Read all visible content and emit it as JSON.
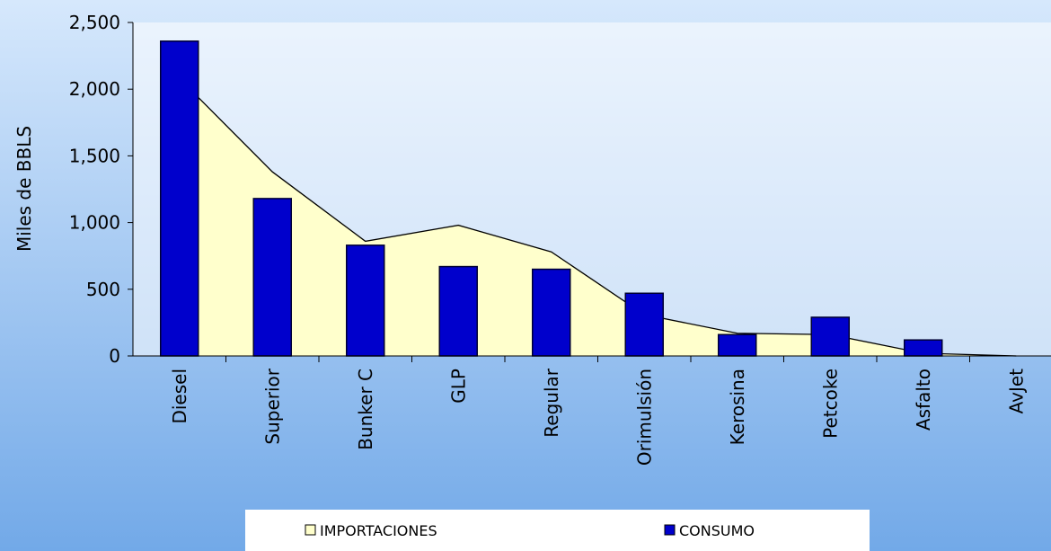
{
  "chart_data": {
    "type": "bar_area",
    "ylabel": "Miles de BBLS",
    "categories": [
      "Diesel",
      "Superior",
      "Bunker C",
      "GLP",
      "Regular",
      "Orimulsión",
      "Kerosina",
      "Petcoke",
      "Asfalto",
      "AvJet"
    ],
    "series": [
      {
        "name": "IMPORTACIONES",
        "kind": "area",
        "color": "#ffffcc",
        "values": [
          2080,
          1380,
          860,
          980,
          780,
          310,
          170,
          160,
          20,
          0
        ]
      },
      {
        "name": "CONSUMO",
        "kind": "bar",
        "color": "#0000cc",
        "values": [
          2360,
          1180,
          830,
          670,
          650,
          470,
          160,
          290,
          120,
          0
        ]
      }
    ],
    "ylim": [
      0,
      2500
    ],
    "yticks": [
      0,
      500,
      {
        "value": 1000,
        "label": "1,000"
      },
      {
        "value": 1500,
        "label": "1,500"
      },
      {
        "value": 2000,
        "label": "2,000"
      },
      {
        "value": 2500,
        "label": "2,500"
      }
    ]
  }
}
